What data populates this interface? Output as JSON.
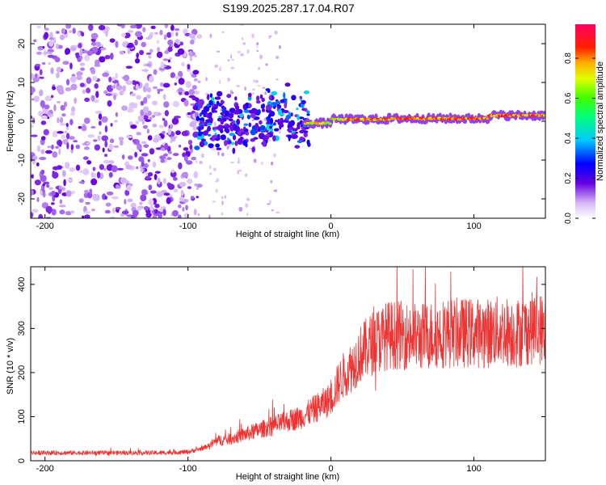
{
  "title": "S199.2025.287.17.04.R07",
  "chart_data": [
    {
      "type": "heatmap",
      "name": "spectrogram",
      "xlabel": "Height of straight line (km)",
      "ylabel": "Frequency (Hz)",
      "xlim": [
        -210,
        150
      ],
      "ylim": [
        -25,
        25
      ],
      "xticks": [
        -200,
        -100,
        0,
        100
      ],
      "yticks": [
        -20,
        -10,
        0,
        10,
        20
      ],
      "colorbar": {
        "label": "Normalized spectral amplitude",
        "range": [
          0,
          0.97
        ],
        "ticks": [
          0.0,
          0.2,
          0.4,
          0.6,
          0.8
        ],
        "tick_labels": [
          "0.0",
          "0.2",
          "0.4",
          "0.6",
          "0.8"
        ],
        "colormap": "rainbow (white, purple, blue, cyan, green, yellow, red, magenta)"
      },
      "regions": [
        {
          "x_range": [
            -210,
            -95
          ],
          "description": "broadband noise, amplitude ~0.05-0.15 spread over all frequencies"
        },
        {
          "x_range": [
            -95,
            -15
          ],
          "description": "energy concentrated between -8 and 8 Hz, amplitude ~0.2-0.45"
        },
        {
          "x_range": [
            -15,
            150
          ],
          "description": "narrow tone near 0 to 1 Hz, amplitude ~0.6-0.9"
        }
      ]
    },
    {
      "type": "line",
      "name": "snr",
      "xlabel": "Height of straight line (km)",
      "ylabel": "SNR (10 * v/v)",
      "xlim": [
        -210,
        150
      ],
      "ylim": [
        0,
        440
      ],
      "xticks": [
        -200,
        -100,
        0,
        100
      ],
      "yticks": [
        0,
        100,
        200,
        300,
        400
      ],
      "color": "#ee3333",
      "series": [
        {
          "name": "SNR",
          "x": [
            -210,
            -180,
            -150,
            -120,
            -100,
            -90,
            -85,
            -80,
            -70,
            -60,
            -50,
            -40,
            -30,
            -25,
            -20,
            -15,
            -10,
            -5,
            0,
            5,
            10,
            15,
            20,
            30,
            40,
            50,
            60,
            70,
            80,
            90,
            100,
            110,
            120,
            130,
            140,
            150
          ],
          "y": [
            18,
            18,
            18,
            18,
            20,
            28,
            35,
            45,
            50,
            60,
            70,
            80,
            90,
            95,
            100,
            110,
            120,
            130,
            140,
            175,
            200,
            215,
            240,
            270,
            285,
            285,
            280,
            285,
            290,
            290,
            290,
            290,
            295,
            290,
            300,
            300
          ]
        }
      ]
    }
  ]
}
